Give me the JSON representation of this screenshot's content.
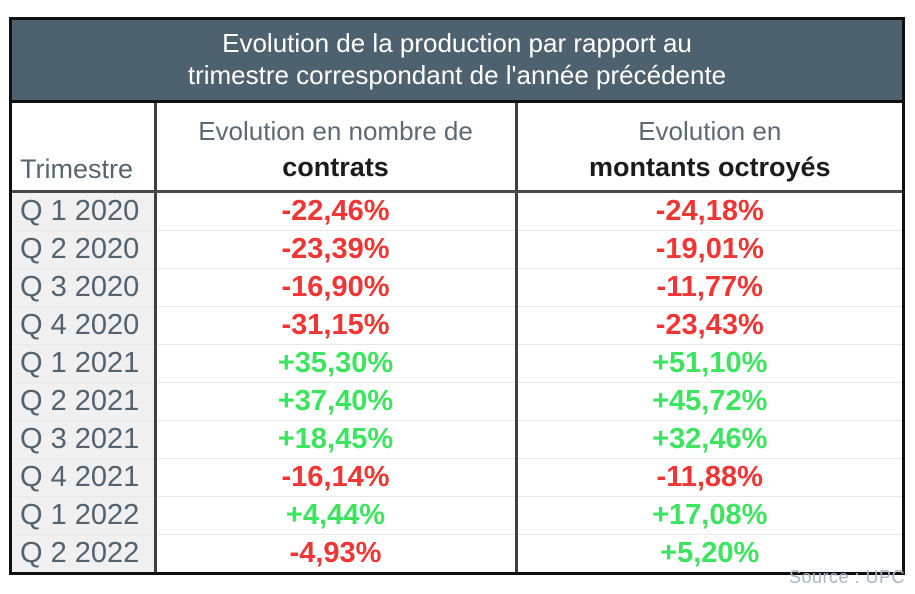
{
  "title": {
    "line1": "Evolution de la production par rapport au",
    "line2": "trimestre correspondant de l'année précédente"
  },
  "columns": {
    "trimestre": "Trimestre",
    "contrats_line1": "Evolution en nombre de",
    "contrats_line2": "contrats",
    "montants_line1": "Evolution en",
    "montants_line2": "montants octroyés"
  },
  "rows": [
    {
      "trimestre": "Q 1 2020",
      "contrats": "-22,46%",
      "montants": "-24,18%"
    },
    {
      "trimestre": "Q 2 2020",
      "contrats": "-23,39%",
      "montants": "-19,01%"
    },
    {
      "trimestre": "Q 3 2020",
      "contrats": "-16,90%",
      "montants": "-11,77%"
    },
    {
      "trimestre": "Q 4 2020",
      "contrats": "-31,15%",
      "montants": "-23,43%"
    },
    {
      "trimestre": "Q 1 2021",
      "contrats": "+35,30%",
      "montants": "+51,10%"
    },
    {
      "trimestre": "Q 2 2021",
      "contrats": "+37,40%",
      "montants": "+45,72%"
    },
    {
      "trimestre": "Q 3 2021",
      "contrats": "+18,45%",
      "montants": "+32,46%"
    },
    {
      "trimestre": "Q 4 2021",
      "contrats": "-16,14%",
      "montants": "-11,88%"
    },
    {
      "trimestre": "Q 1 2022",
      "contrats": "+4,44%",
      "montants": "+17,08%"
    },
    {
      "trimestre": "Q 2 2022",
      "contrats": "-4,93%",
      "montants": "+5,20%"
    }
  ],
  "source": "Source : UPC",
  "colors": {
    "header_bg": "#4e616e",
    "negative": "#f03535",
    "positive": "#3ce45f",
    "source_color": "#a9b5c2"
  },
  "chart_data": {
    "type": "table",
    "title": "Evolution de la production par rapport au trimestre correspondant de l'année précédente",
    "categories": [
      "Q 1 2020",
      "Q 2 2020",
      "Q 3 2020",
      "Q 4 2020",
      "Q 1 2021",
      "Q 2 2021",
      "Q 3 2021",
      "Q 4 2021",
      "Q 1 2022",
      "Q 2 2022"
    ],
    "series": [
      {
        "name": "Evolution en nombre de contrats",
        "values": [
          -22.46,
          -23.39,
          -16.9,
          -31.15,
          35.3,
          37.4,
          18.45,
          -16.14,
          4.44,
          -4.93
        ]
      },
      {
        "name": "Evolution en montants octroyés",
        "values": [
          -24.18,
          -19.01,
          -11.77,
          -23.43,
          51.1,
          45.72,
          32.46,
          -11.88,
          17.08,
          5.2
        ]
      }
    ]
  }
}
